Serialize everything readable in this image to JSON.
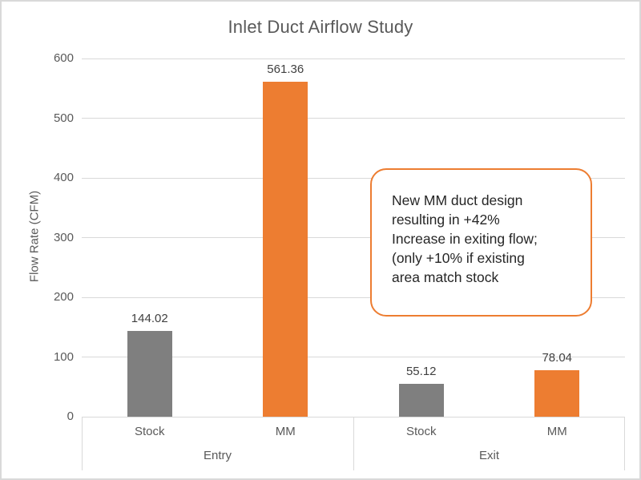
{
  "chart_data": {
    "type": "bar",
    "title": "Inlet Duct Airflow Study",
    "xlabel": "",
    "ylabel": "Flow Rate (CFM)",
    "ylim": [
      0,
      600
    ],
    "ytick_interval": 100,
    "yticks": [
      0,
      100,
      200,
      300,
      400,
      500,
      600
    ],
    "grid": true,
    "legend": false,
    "data_labels": true,
    "groups": [
      {
        "label": "Entry",
        "bars": [
          {
            "category": "Stock",
            "value": 144.02,
            "value_label": "144.02",
            "color": "#7F7F7F"
          },
          {
            "category": "MM",
            "value": 561.36,
            "value_label": "561.36",
            "color": "#ED7D31"
          }
        ]
      },
      {
        "label": "Exit",
        "bars": [
          {
            "category": "Stock",
            "value": 55.12,
            "value_label": "55.12",
            "color": "#7F7F7F"
          },
          {
            "category": "MM",
            "value": 78.04,
            "value_label": "78.04",
            "color": "#ED7D31"
          }
        ]
      }
    ],
    "annotation": {
      "text": "New MM duct design\nresulting in +42%\nIncrease in exiting flow;\n(only +10% if existing\narea match stock",
      "border_color": "#ED7D31"
    }
  },
  "colors": {
    "series_stock": "#7F7F7F",
    "series_mm": "#ED7D31",
    "gridline": "#D9D9D9",
    "axis_text": "#595959",
    "data_label_text": "#404040",
    "frame_border": "#D9D9D9",
    "background": "#FFFFFF"
  }
}
